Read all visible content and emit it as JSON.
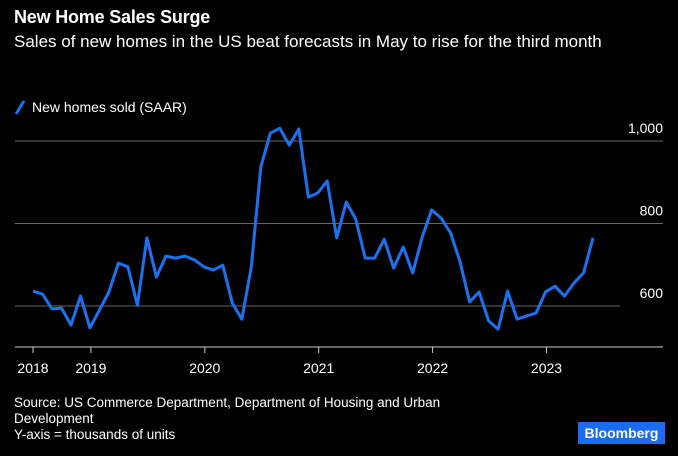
{
  "header": {
    "title": "New Home Sales Surge",
    "subtitle": "Sales of new homes in the US beat forecasts in May to rise for the third month"
  },
  "footer": {
    "source": "Source: US Commerce Department, Department of Housing and Urban Development",
    "note": "Y-axis = thousands of units",
    "brand": "Bloomberg"
  },
  "colors": {
    "line": "#1a72f0",
    "grid": "#666666",
    "axis": "#cccccc",
    "background": "#000000",
    "brand": "#1a6cf5"
  },
  "chart_data": {
    "type": "line",
    "title": "New Home Sales Surge",
    "ylabel": "",
    "xlabel": "",
    "ylim": [
      500,
      1050
    ],
    "yticks": [
      600,
      800,
      1000
    ],
    "ytick_labels": [
      "600",
      "800",
      "1,000"
    ],
    "xtick_labels": [
      "2018",
      "2019",
      "2020",
      "2021",
      "2022",
      "2023"
    ],
    "grid": true,
    "legend_placement": "top-left",
    "series": [
      {
        "name": "New homes sold (SAAR)",
        "x": [
          "2018-06",
          "2018-07",
          "2018-08",
          "2018-09",
          "2018-10",
          "2018-11",
          "2018-12",
          "2019-01",
          "2019-02",
          "2019-03",
          "2019-04",
          "2019-05",
          "2019-06",
          "2019-07",
          "2019-08",
          "2019-09",
          "2019-10",
          "2019-11",
          "2019-12",
          "2020-01",
          "2020-02",
          "2020-03",
          "2020-04",
          "2020-05",
          "2020-06",
          "2020-07",
          "2020-08",
          "2020-09",
          "2020-10",
          "2020-11",
          "2020-12",
          "2021-01",
          "2021-02",
          "2021-03",
          "2021-04",
          "2021-05",
          "2021-06",
          "2021-07",
          "2021-08",
          "2021-09",
          "2021-10",
          "2021-11",
          "2021-12",
          "2022-01",
          "2022-02",
          "2022-03",
          "2022-04",
          "2022-05",
          "2022-06",
          "2022-07",
          "2022-08",
          "2022-09",
          "2022-10",
          "2022-11",
          "2022-12",
          "2023-01",
          "2023-02",
          "2023-03",
          "2023-04",
          "2023-05"
        ],
        "values": [
          636,
          629,
          593,
          595,
          554,
          624,
          547,
          590,
          634,
          704,
          695,
          602,
          765,
          670,
          721,
          716,
          721,
          712,
          695,
          687,
          699,
          607,
          568,
          695,
          937,
          1019,
          1031,
          990,
          1029,
          864,
          874,
          903,
          765,
          852,
          811,
          716,
          716,
          762,
          692,
          743,
          680,
          767,
          833,
          813,
          777,
          707,
          610,
          634,
          564,
          544,
          636,
          568,
          576,
          583,
          634,
          648,
          624,
          656,
          680,
          765
        ]
      }
    ]
  }
}
